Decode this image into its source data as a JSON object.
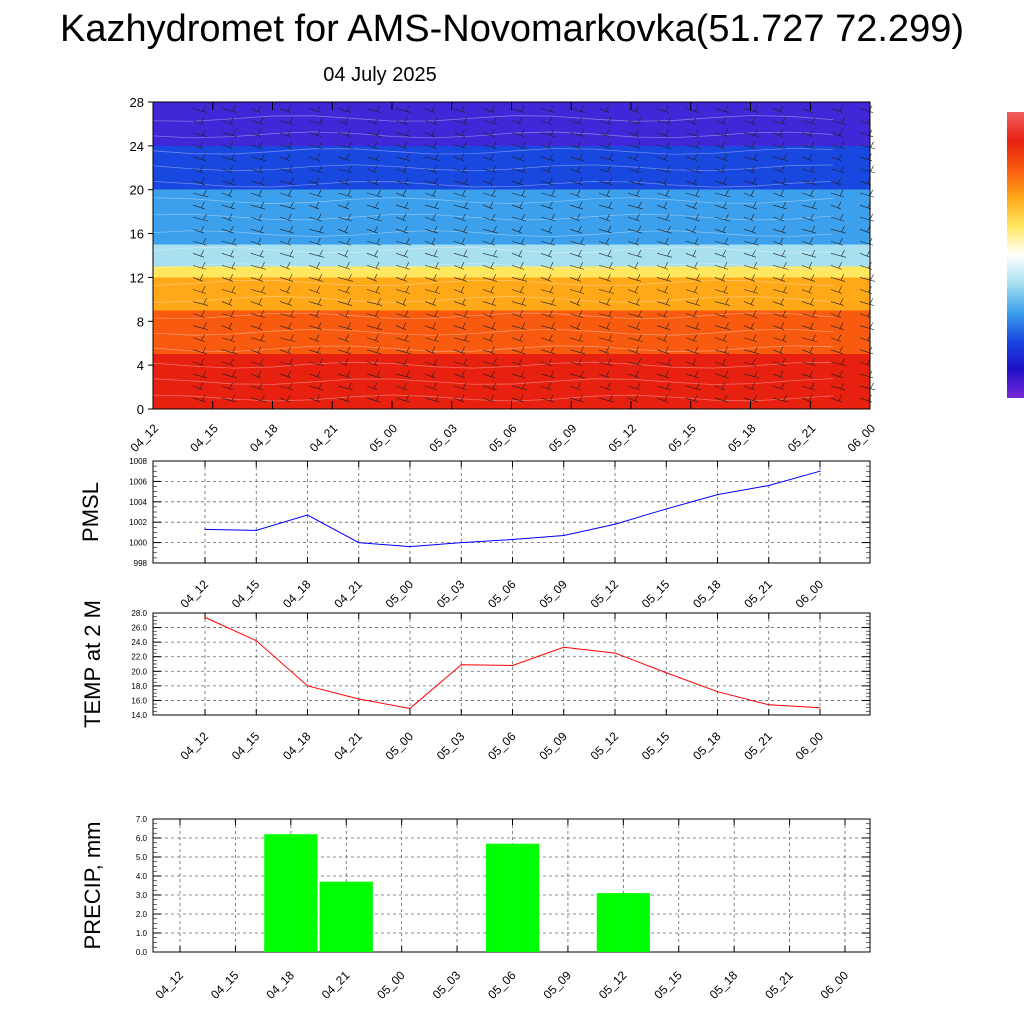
{
  "header": {
    "title": "Kazhydromet for AMS-Novomarkovka(51.727 72.299)",
    "date": "04 July 2025"
  },
  "chart_data": [
    {
      "id": "cross-section",
      "type": "heatmap",
      "title": "",
      "x_tick_labels": [
        "04_12",
        "04_15",
        "04_18",
        "04_21",
        "05_00",
        "05_03",
        "05_06",
        "05_09",
        "05_12",
        "05_15",
        "05_18",
        "05_21",
        "06_00"
      ],
      "y_ticks": [
        0,
        4,
        8,
        12,
        16,
        20,
        24,
        28
      ],
      "ylim": [
        0,
        28
      ],
      "color_bands": [
        {
          "from": 0,
          "to": 5,
          "color": "#e82010"
        },
        {
          "from": 5,
          "to": 9,
          "color": "#f85a10"
        },
        {
          "from": 9,
          "to": 12,
          "color": "#ffa818"
        },
        {
          "from": 12,
          "to": 13,
          "color": "#ffe860"
        },
        {
          "from": 13,
          "to": 15,
          "color": "#a8e0f0"
        },
        {
          "from": 15,
          "to": 20,
          "color": "#3ca0ec"
        },
        {
          "from": 20,
          "to": 24,
          "color": "#1848e0"
        },
        {
          "from": 24,
          "to": 28,
          "color": "#4028d8"
        }
      ],
      "colorbar_colors": [
        "#f06060",
        "#e82010",
        "#f85a10",
        "#ffa818",
        "#ffe860",
        "#ffffff",
        "#a8e0f0",
        "#3ca0ec",
        "#1848e0",
        "#2010c8",
        "#7828d8"
      ]
    },
    {
      "id": "pmsl",
      "type": "line",
      "ylabel": "PMSL",
      "line_color": "#0000ff",
      "categories": [
        "04_12",
        "04_15",
        "04_18",
        "04_21",
        "05_00",
        "05_03",
        "05_06",
        "05_09",
        "05_12",
        "05_15",
        "05_18",
        "05_21",
        "06_00"
      ],
      "values": [
        1001.3,
        1001.2,
        1002.7,
        1000.0,
        999.6,
        1000.0,
        1000.3,
        1000.7,
        1001.8,
        1003.3,
        1004.7,
        1005.6,
        1007.0
      ],
      "y_ticks": [
        998,
        1000,
        1002,
        1004,
        1006,
        1008
      ],
      "ylim": [
        998,
        1008
      ]
    },
    {
      "id": "temp",
      "type": "line",
      "ylabel": "TEMP at 2 M",
      "line_color": "#ff0000",
      "categories": [
        "04_12",
        "04_15",
        "04_18",
        "04_21",
        "05_00",
        "05_03",
        "05_06",
        "05_09",
        "05_12",
        "05_15",
        "05_18",
        "05_21",
        "06_00"
      ],
      "values": [
        27.4,
        24.2,
        18.0,
        16.2,
        14.9,
        20.9,
        20.8,
        23.3,
        22.5,
        19.8,
        17.2,
        15.4,
        15.0
      ],
      "y_ticks": [
        "14.0",
        "16.0",
        "18.0",
        "20.0",
        "22.0",
        "24.0",
        "26.0",
        "28.0"
      ],
      "ylim": [
        14,
        28
      ]
    },
    {
      "id": "precip",
      "type": "bar",
      "ylabel": "PRECIP, mm",
      "bar_color": "#00ff00",
      "categories": [
        "04_12",
        "04_15",
        "04_18",
        "04_21",
        "05_00",
        "05_03",
        "05_06",
        "05_09",
        "05_12",
        "05_15",
        "05_18",
        "05_21",
        "06_00"
      ],
      "values": [
        0,
        0,
        6.2,
        3.7,
        0,
        0,
        5.7,
        0,
        3.1,
        0,
        0,
        0,
        0
      ],
      "y_ticks": [
        "0.0",
        "1.0",
        "2.0",
        "3.0",
        "4.0",
        "5.0",
        "6.0",
        "7.0"
      ],
      "ylim": [
        0,
        7
      ]
    }
  ]
}
